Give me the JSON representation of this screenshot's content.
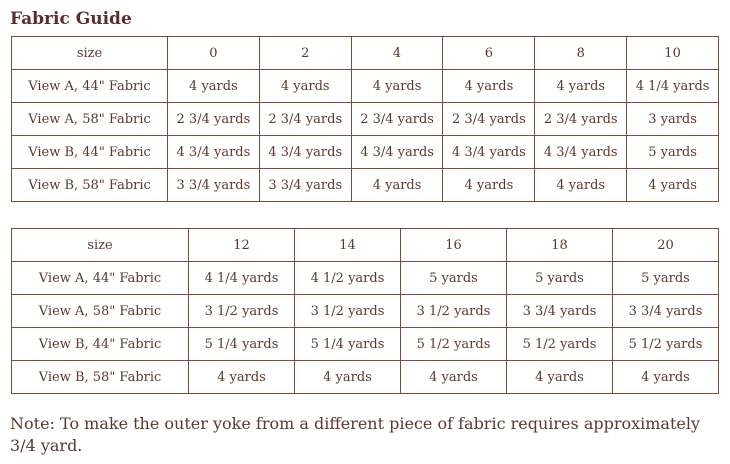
{
  "page": {
    "title": "Fabric Guide",
    "note": "Note: To make the outer yoke from a different piece of fabric requires approximately 3/4 yard."
  },
  "colors": {
    "text": "#5a392f",
    "title": "#5b2d2b",
    "border": "#7b4a3a",
    "background": "#ffffff"
  },
  "tables": [
    {
      "name": "sizes-0-10",
      "header": [
        "size",
        "0",
        "2",
        "4",
        "6",
        "8",
        "10"
      ],
      "rows": [
        {
          "label": "View A, 44\" Fabric",
          "values": [
            "4 yards",
            "4 yards",
            "4 yards",
            "4 yards",
            "4 yards",
            "4 1/4 yards"
          ]
        },
        {
          "label": "View A, 58\" Fabric",
          "values": [
            "2 3/4 yards",
            "2 3/4 yards",
            "2 3/4 yards",
            "2 3/4 yards",
            "2 3/4 yards",
            "3 yards"
          ]
        },
        {
          "label": "View B, 44\" Fabric",
          "values": [
            "4 3/4 yards",
            "4 3/4 yards",
            "4 3/4 yards",
            "4 3/4 yards",
            "4 3/4 yards",
            "5 yards"
          ]
        },
        {
          "label": "View B, 58\" Fabric",
          "values": [
            "3 3/4 yards",
            "3 3/4 yards",
            "4 yards",
            "4 yards",
            "4 yards",
            "4 yards"
          ]
        }
      ]
    },
    {
      "name": "sizes-12-20",
      "header": [
        "size",
        "12",
        "14",
        "16",
        "18",
        "20"
      ],
      "rows": [
        {
          "label": "View A, 44\" Fabric",
          "values": [
            "4 1/4 yards",
            "4 1/2 yards",
            "5 yards",
            "5 yards",
            "5 yards"
          ]
        },
        {
          "label": "View A, 58\" Fabric",
          "values": [
            "3 1/2 yards",
            "3 1/2 yards",
            "3 1/2 yards",
            "3 3/4 yards",
            "3 3/4 yards"
          ]
        },
        {
          "label": "View B, 44\" Fabric",
          "values": [
            "5 1/4 yards",
            "5 1/4 yards",
            "5 1/2 yards",
            "5 1/2 yards",
            "5 1/2 yards"
          ]
        },
        {
          "label": "View B, 58\" Fabric",
          "values": [
            "4 yards",
            "4 yards",
            "4 yards",
            "4 yards",
            "4 yards"
          ]
        }
      ]
    }
  ]
}
